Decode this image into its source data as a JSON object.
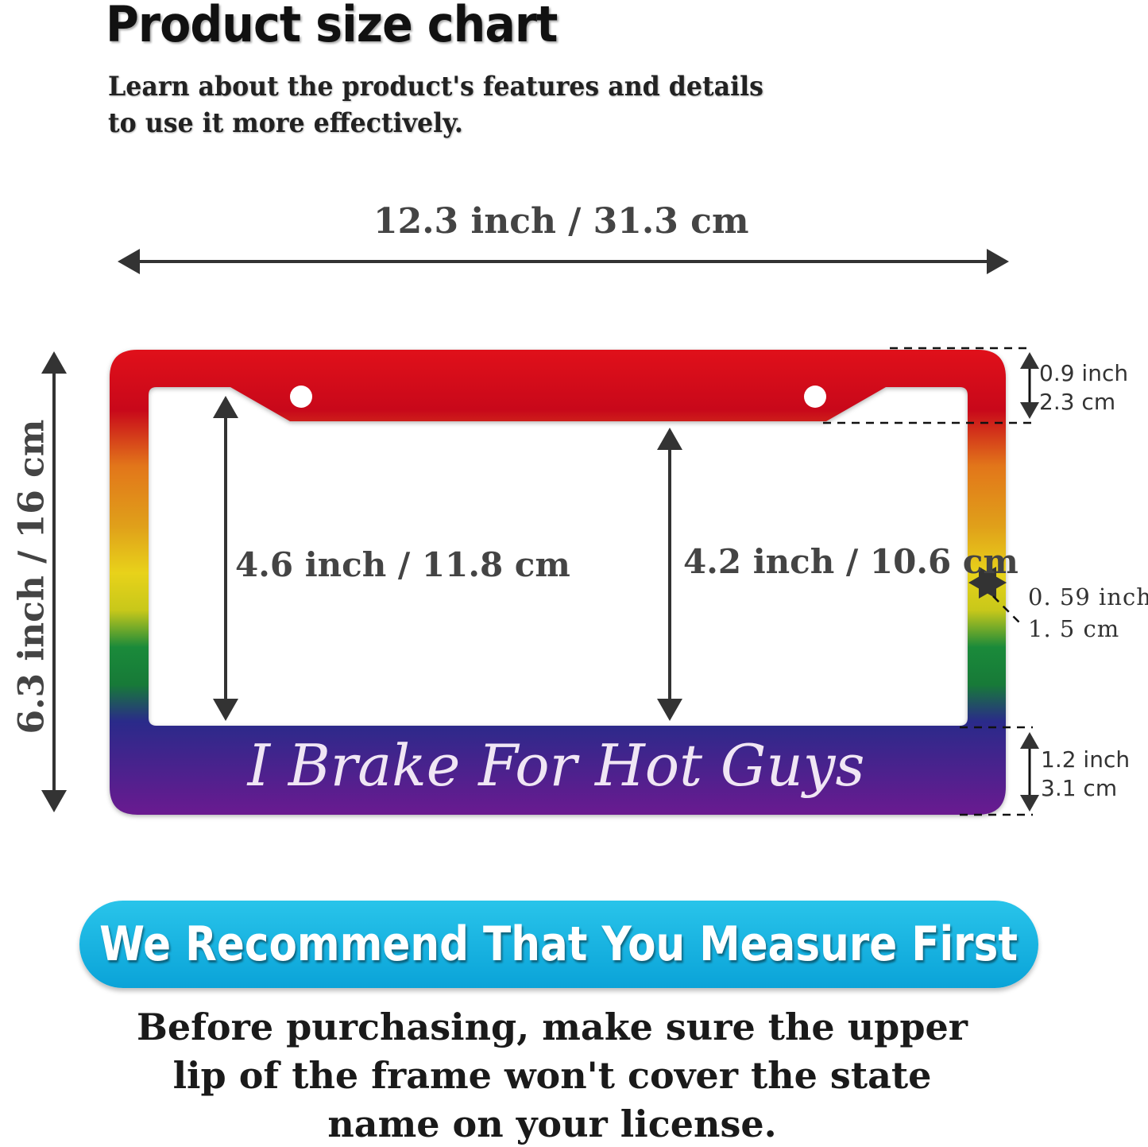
{
  "header": {
    "title": "Product size chart",
    "subtitle_line1": "Learn about the product's features and details",
    "subtitle_line2": "to use it more effectively."
  },
  "dimensions": {
    "overall_width": "12.3 inch / 31.3 cm",
    "overall_height": "6.3 inch / 16 cm",
    "inner_height_left": "4.6 inch / 11.8 cm",
    "inner_height_center": "4.2 inch / 10.6 cm",
    "top_border_inch": "0.9 inch",
    "top_border_cm": "2.3 cm",
    "side_border_inch": "0. 59 inch",
    "side_border_cm": "1. 5 cm",
    "bottom_border_inch": "1.2 inch",
    "bottom_border_cm": "3.1 cm"
  },
  "product": {
    "slogan": "I Brake For Hot Guys",
    "gradient_colors": [
      "#e0101a",
      "#e2761a",
      "#e8d21a",
      "#1a8a3a",
      "#2a2a8a",
      "#6a1a90"
    ]
  },
  "banner": {
    "text": "We Recommend That You Measure First",
    "color": "#17b4e2"
  },
  "note": {
    "line1": "Before purchasing, make sure the upper",
    "line2": "lip of the frame won't cover the state",
    "line3": "name on your license."
  }
}
